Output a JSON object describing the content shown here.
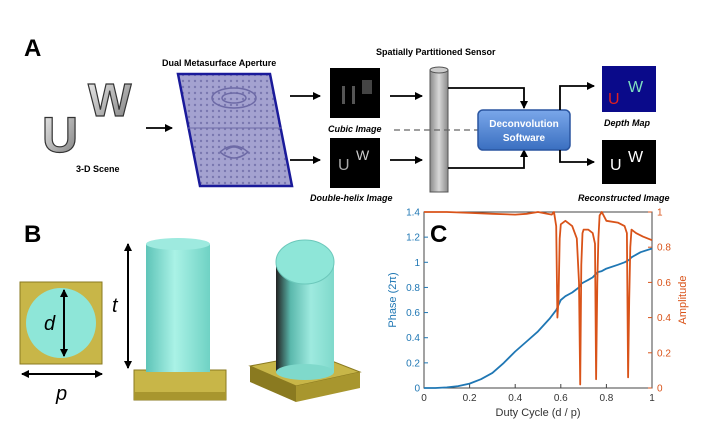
{
  "panels": {
    "a": "A",
    "b": "B",
    "c": "C"
  },
  "panel_a": {
    "scene_letters": [
      "U",
      "W"
    ],
    "scene_label": "3-D Scene",
    "aperture_label": "Dual Metasurface Aperture",
    "sensor_label": "Spatially Partitioned Sensor",
    "cubic_label": "Cubic Image",
    "helix_label": "Double-helix Image",
    "software_label_1": "Deconvolution",
    "software_label_2": "Software",
    "depth_map_label": "Depth Map",
    "reconstructed_label": "Reconstructed Image",
    "depth_u": "U",
    "depth_w": "W",
    "recon_u": "U",
    "recon_w": "W",
    "colors": {
      "metasurface": "#9a96c8",
      "metasurface_border": "#1a1a9a",
      "software_box": "#4f86d6",
      "depth_bg": "#0a0a8a",
      "depth_u": "#e02020",
      "depth_w": "#7fe0c0",
      "sensor": "#b8b8b8"
    }
  },
  "panel_b": {
    "d_label": "d",
    "p_label": "p",
    "t_label": "t",
    "colors": {
      "pillar": "#8ee6d8",
      "substrate": "#c8b648",
      "substrate_dark": "#8a7a20"
    }
  },
  "chart_data": {
    "type": "line",
    "xlabel": "Duty Cycle (d / p)",
    "ylabel_left": "Phase (2π)",
    "ylabel_right": "Amplitude",
    "xlim": [
      0,
      1
    ],
    "ylim_left": [
      0,
      1.4
    ],
    "ylim_right": [
      0,
      1
    ],
    "x_ticks": [
      "0",
      "0.2",
      "0.4",
      "0.6",
      "0.8",
      "1"
    ],
    "y_ticks_left": [
      "0",
      "0.2",
      "0.4",
      "0.6",
      "0.8",
      "1",
      "1.2",
      "1.4"
    ],
    "y_ticks_right": [
      "0",
      "0.2",
      "0.4",
      "0.6",
      "0.8",
      "1"
    ],
    "grid": false,
    "series": [
      {
        "axis": "left",
        "color": "#1f77b4",
        "x": [
          0,
          0.05,
          0.1,
          0.15,
          0.2,
          0.25,
          0.3,
          0.35,
          0.4,
          0.45,
          0.5,
          0.55,
          0.58,
          0.59,
          0.6,
          0.62,
          0.65,
          0.68,
          0.69,
          0.7,
          0.72,
          0.74,
          0.75,
          0.76,
          0.78,
          0.8,
          0.85,
          0.88,
          0.9,
          0.91,
          0.92,
          0.95,
          1.0
        ],
        "y": [
          0,
          0.0,
          0.005,
          0.015,
          0.035,
          0.07,
          0.12,
          0.2,
          0.29,
          0.37,
          0.45,
          0.55,
          0.62,
          0.66,
          0.7,
          0.73,
          0.76,
          0.8,
          0.83,
          0.84,
          0.86,
          0.88,
          0.9,
          0.92,
          0.93,
          0.95,
          0.98,
          1.0,
          1.02,
          1.04,
          1.05,
          1.08,
          1.11
        ]
      },
      {
        "axis": "right",
        "color": "#d95319",
        "x": [
          0,
          0.1,
          0.2,
          0.3,
          0.4,
          0.45,
          0.5,
          0.52,
          0.54,
          0.56,
          0.57,
          0.58,
          0.585,
          0.59,
          0.595,
          0.6,
          0.62,
          0.65,
          0.67,
          0.68,
          0.685,
          0.69,
          0.695,
          0.7,
          0.72,
          0.74,
          0.75,
          0.755,
          0.76,
          0.765,
          0.77,
          0.78,
          0.8,
          0.85,
          0.88,
          0.89,
          0.895,
          0.9,
          0.905,
          0.91,
          0.93,
          0.96,
          1.0
        ],
        "y": [
          1.0,
          1.0,
          0.995,
          0.99,
          0.985,
          0.99,
          1.0,
          0.995,
          0.99,
          0.985,
          1.0,
          0.92,
          0.4,
          0.5,
          0.85,
          0.93,
          0.95,
          0.92,
          0.85,
          0.6,
          0.02,
          0.7,
          0.88,
          0.9,
          0.9,
          0.88,
          0.82,
          0.05,
          0.6,
          0.85,
          0.98,
          1.0,
          0.95,
          0.94,
          0.92,
          0.88,
          0.06,
          0.5,
          0.8,
          0.9,
          0.88,
          0.86,
          0.84
        ]
      }
    ]
  }
}
